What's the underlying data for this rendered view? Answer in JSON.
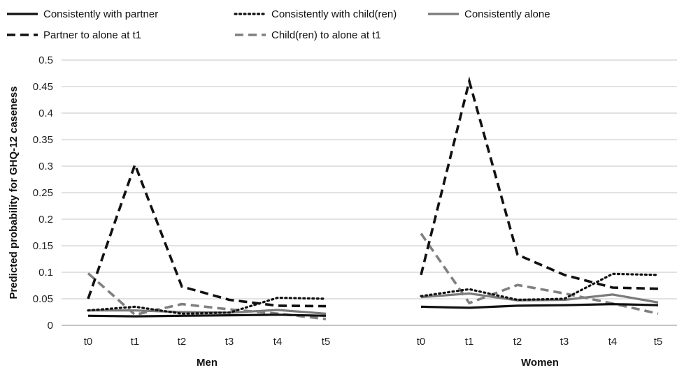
{
  "chart_data": {
    "type": "line",
    "ylabel": "Predicted probability for GHQ-12 caseness",
    "ylim": [
      0,
      0.5
    ],
    "yticks": [
      "0",
      "0.05",
      "0.1",
      "0.15",
      "0.2",
      "0.25",
      "0.3",
      "0.35",
      "0.4",
      "0.45",
      "0.5"
    ],
    "grid": true,
    "legend": "top",
    "groups": [
      {
        "label": "Men",
        "x": [
          "t0",
          "t1",
          "t2",
          "t3",
          "t4",
          "t5"
        ],
        "series": [
          {
            "name": "Consistently with partner",
            "values": [
              0.018,
              0.017,
              0.018,
              0.019,
              0.02,
              0.018
            ]
          },
          {
            "name": "Consistently with child(ren)",
            "values": [
              0.028,
              0.035,
              0.022,
              0.024,
              0.052,
              0.05
            ]
          },
          {
            "name": "Consistently alone",
            "values": [
              0.028,
              0.028,
              0.025,
              0.024,
              0.029,
              0.022
            ]
          },
          {
            "name": "Partner to alone at t1",
            "values": [
              0.05,
              0.303,
              0.073,
              0.048,
              0.037,
              0.036
            ]
          },
          {
            "name": "Child(ren) to alone at t1",
            "values": [
              0.098,
              0.02,
              0.04,
              0.03,
              0.022,
              0.012
            ]
          }
        ]
      },
      {
        "label": "Women",
        "x": [
          "t0",
          "t1",
          "t2",
          "t3",
          "t4",
          "t5"
        ],
        "series": [
          {
            "name": "Consistently with partner",
            "values": [
              0.035,
              0.033,
              0.037,
              0.038,
              0.04,
              0.038
            ]
          },
          {
            "name": "Consistently with child(ren)",
            "values": [
              0.055,
              0.068,
              0.048,
              0.05,
              0.097,
              0.095
            ]
          },
          {
            "name": "Consistently alone",
            "values": [
              0.053,
              0.06,
              0.047,
              0.048,
              0.058,
              0.043
            ]
          },
          {
            "name": "Partner to alone at t1",
            "values": [
              0.095,
              0.46,
              0.133,
              0.095,
              0.071,
              0.069
            ]
          },
          {
            "name": "Child(ren) to alone at t1",
            "values": [
              0.173,
              0.042,
              0.076,
              0.06,
              0.041,
              0.022
            ]
          }
        ]
      }
    ],
    "legend_entries": [
      {
        "name": "Consistently with partner",
        "color": "#111111",
        "style": "solid"
      },
      {
        "name": "Consistently with child(ren)",
        "color": "#111111",
        "style": "dotted"
      },
      {
        "name": "Consistently alone",
        "color": "#7a7a7a",
        "style": "solid"
      },
      {
        "name": "Partner to alone at t1",
        "color": "#111111",
        "style": "dashed"
      },
      {
        "name": "Child(ren) to alone at t1",
        "color": "#808080",
        "style": "dashed"
      }
    ]
  }
}
